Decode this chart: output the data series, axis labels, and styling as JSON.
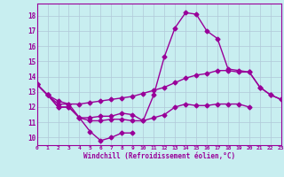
{
  "xlabel": "Windchill (Refroidissement éolien,°C)",
  "x_hours": [
    0,
    1,
    2,
    3,
    4,
    5,
    6,
    7,
    8,
    9,
    10,
    11,
    12,
    13,
    14,
    15,
    16,
    17,
    18,
    19,
    20,
    21,
    22,
    23
  ],
  "line1_y": [
    13.5,
    12.8,
    12.0,
    12.0,
    11.3,
    10.4,
    9.8,
    10.0,
    10.3,
    10.3,
    null,
    null,
    null,
    null,
    null,
    null,
    null,
    null,
    null,
    null,
    null,
    null,
    null,
    null
  ],
  "line2_y": [
    13.5,
    12.8,
    12.2,
    12.2,
    11.3,
    11.3,
    11.4,
    11.4,
    11.6,
    11.5,
    11.1,
    11.3,
    11.5,
    12.0,
    12.2,
    12.1,
    12.1,
    12.2,
    12.2,
    12.2,
    12.0,
    null,
    null,
    null
  ],
  "line3_y": [
    13.5,
    12.8,
    12.4,
    12.2,
    12.2,
    12.3,
    12.4,
    12.5,
    12.6,
    12.7,
    12.9,
    13.1,
    13.3,
    13.6,
    13.9,
    14.1,
    14.2,
    14.4,
    14.4,
    14.3,
    14.3,
    13.3,
    12.8,
    12.5
  ],
  "line4_y": [
    13.5,
    12.8,
    12.0,
    12.0,
    11.3,
    11.1,
    11.1,
    11.2,
    11.2,
    11.1,
    11.1,
    12.8,
    15.3,
    17.2,
    18.2,
    18.1,
    17.0,
    16.5,
    14.5,
    14.4,
    14.3,
    13.3,
    12.8,
    12.5
  ],
  "line_color": "#990099",
  "bg_color": "#c8eef0",
  "grid_color": "#b0c8d8",
  "ylim": [
    9.5,
    18.8
  ],
  "xlim": [
    0,
    23
  ],
  "yticks": [
    10,
    11,
    12,
    13,
    14,
    15,
    16,
    17,
    18
  ],
  "xticks": [
    0,
    1,
    2,
    3,
    4,
    5,
    6,
    7,
    8,
    9,
    10,
    11,
    12,
    13,
    14,
    15,
    16,
    17,
    18,
    19,
    20,
    21,
    22,
    23
  ],
  "marker": "D",
  "markersize": 2.5,
  "linewidth": 1.0
}
